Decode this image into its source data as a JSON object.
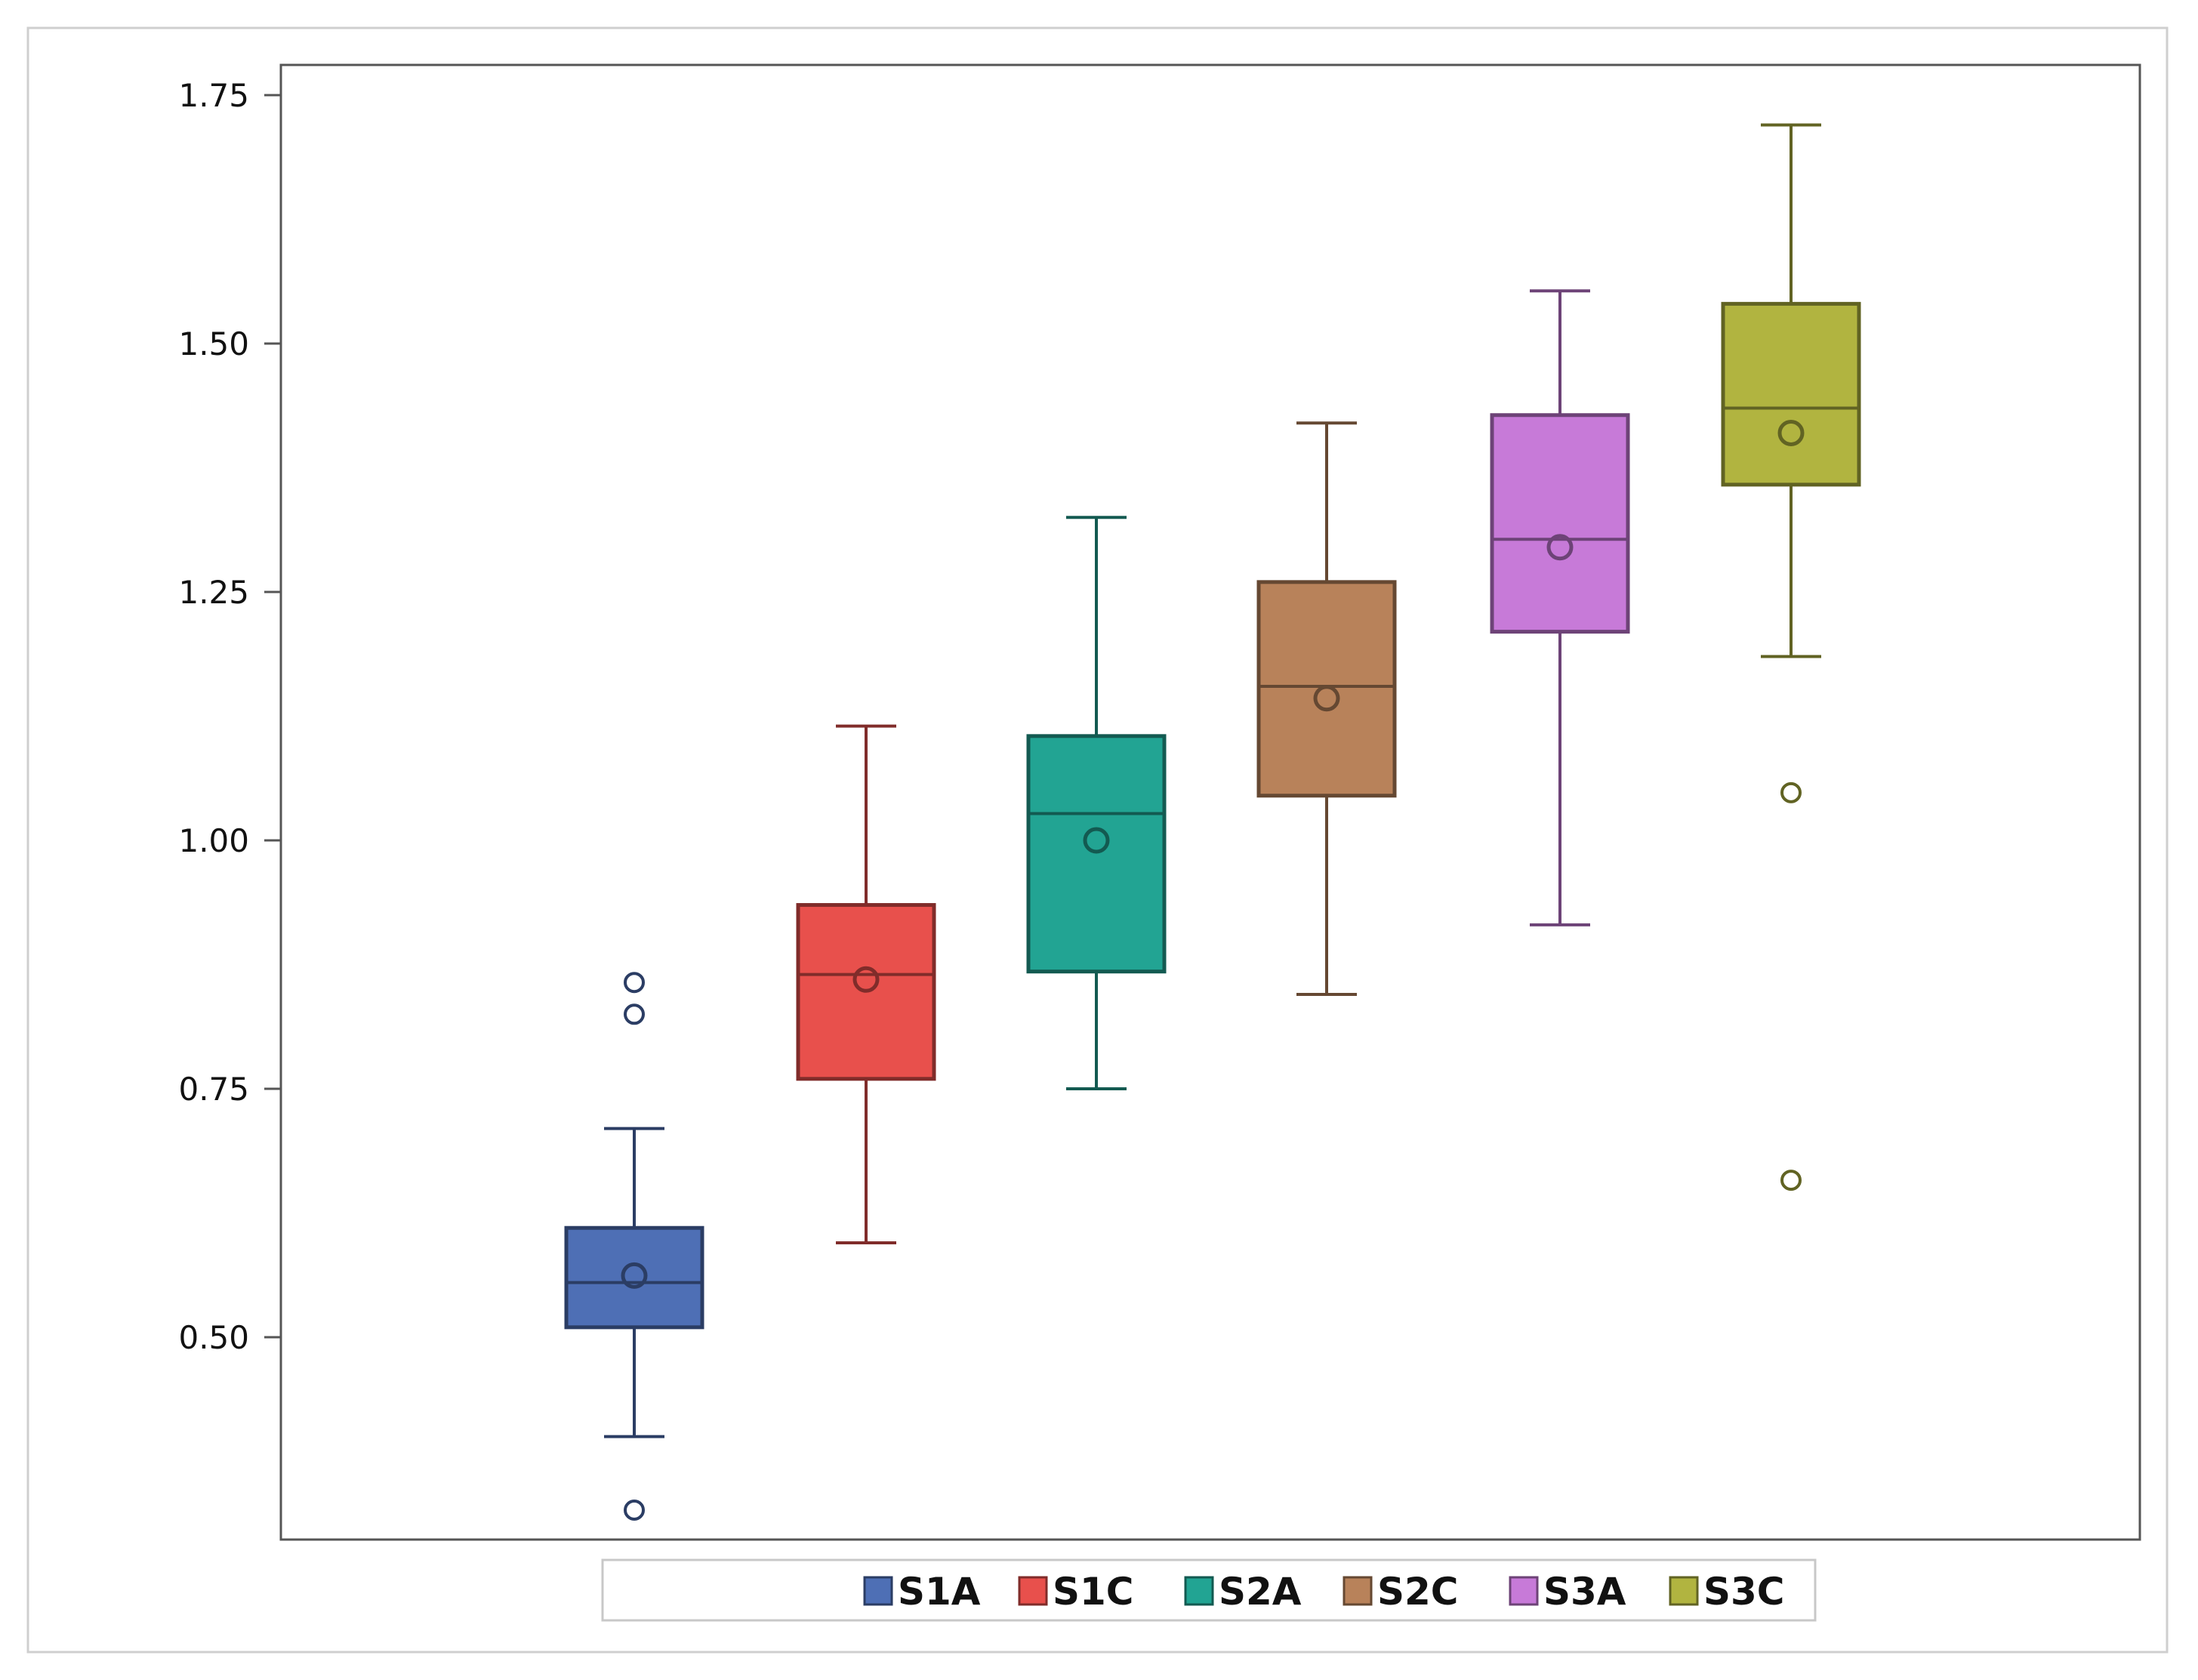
{
  "chart_data": {
    "type": "boxplot",
    "title": "",
    "xlabel": "",
    "ylabel": "",
    "ylim": [
      0.32,
      1.765
    ],
    "yticks": [
      0.5,
      0.75,
      1.0,
      1.25,
      1.5,
      1.75
    ],
    "ytick_labels": [
      "0.50",
      "0.75",
      "1.00",
      "1.25",
      "1.50",
      "1.75"
    ],
    "grid": false,
    "legend_position": "bottom",
    "series": [
      {
        "name": "S1A",
        "color": "#4e6fb5",
        "whisker_low": 0.4,
        "q1": 0.51,
        "median": 0.555,
        "q3": 0.61,
        "whisker_high": 0.71,
        "mean": 0.562,
        "outliers": [
          0.825,
          0.857,
          0.326
        ]
      },
      {
        "name": "S1C",
        "color": "#e8504c",
        "whisker_low": 0.595,
        "q1": 0.76,
        "median": 0.865,
        "q3": 0.935,
        "whisker_high": 1.115,
        "mean": 0.86,
        "outliers": []
      },
      {
        "name": "S2A",
        "color": "#22a493",
        "whisker_low": 0.75,
        "q1": 0.868,
        "median": 1.027,
        "q3": 1.105,
        "whisker_high": 1.325,
        "mean": 1.0,
        "outliers": []
      },
      {
        "name": "S2C",
        "color": "#b8825a",
        "whisker_low": 0.845,
        "q1": 1.045,
        "median": 1.155,
        "q3": 1.26,
        "whisker_high": 1.42,
        "mean": 1.143,
        "outliers": []
      },
      {
        "name": "S3A",
        "color": "#c77ad8",
        "whisker_low": 0.915,
        "q1": 1.21,
        "median": 1.303,
        "q3": 1.428,
        "whisker_high": 1.553,
        "mean": 1.295,
        "outliers": []
      },
      {
        "name": "S3C",
        "color": "#b1b440",
        "whisker_low": 1.185,
        "q1": 1.358,
        "median": 1.435,
        "q3": 1.54,
        "whisker_high": 1.72,
        "mean": 1.41,
        "outliers": [
          1.048,
          0.658
        ]
      }
    ]
  }
}
